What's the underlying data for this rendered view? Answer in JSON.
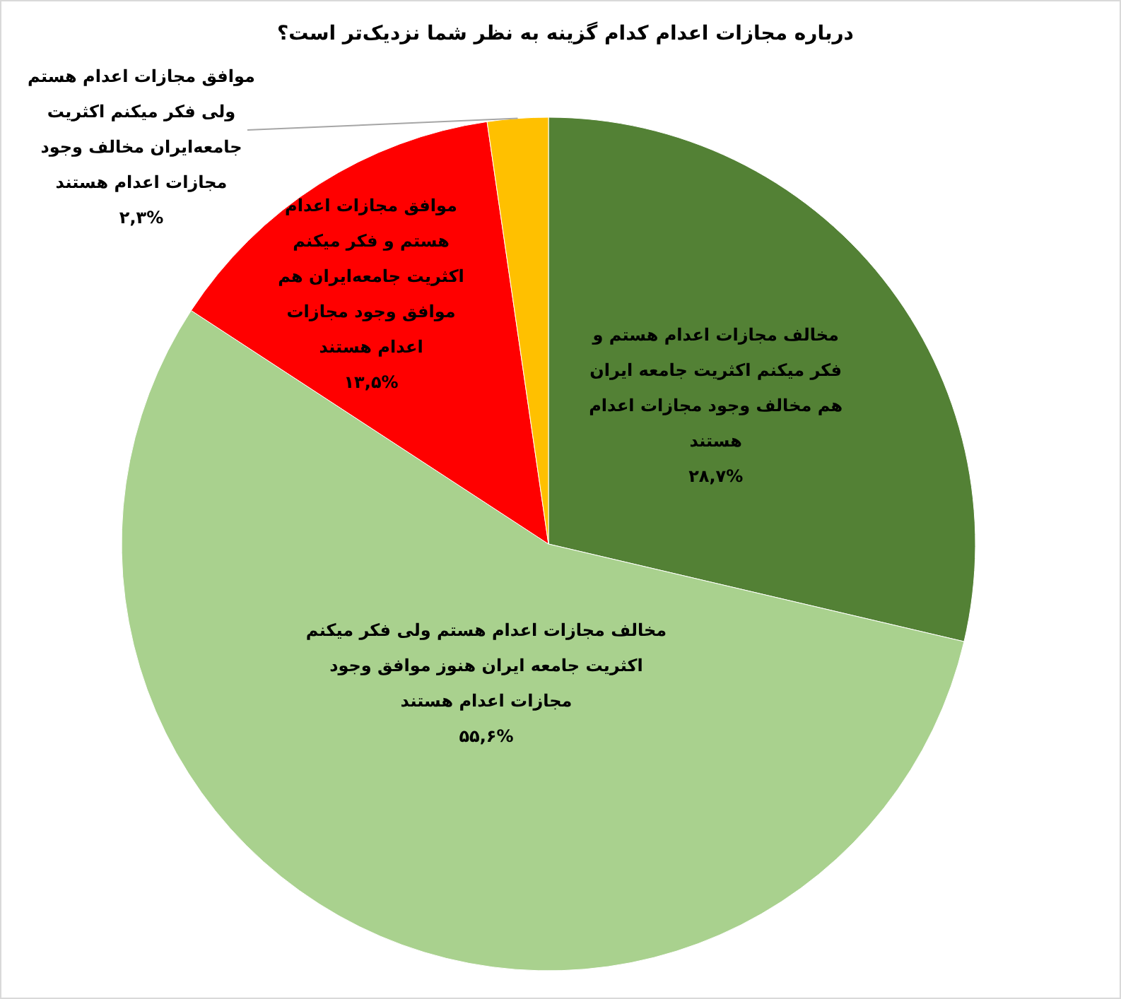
{
  "chart_data": {
    "type": "pie",
    "title": "درباره مجازات اعدام کدام گزینه به نظر شما نزدیک‌تر است؟",
    "categories": [
      "مخالف مجازات اعدام هستم و فکر میکنم اکثریت جامعه ایران هم مخالف وجود مجازات اعدام هستند",
      "مخالف مجازات اعدام هستم ولی فکر میکنم اکثریت جامعه ایران هنوز موافق وجود مجازات اعدام هستند",
      "موافق مجازات اعدام هستم و فکر میکنم اکثریت جامعه‌ایران هم موافق وجود مجازات اعدام هستند",
      "موافق مجازات اعدام هستم ولی فکر میکنم اکثریت جامعه‌ایران مخالف وجود مجازات اعدام هستند"
    ],
    "values": [
      28.7,
      55.6,
      13.5,
      2.3
    ],
    "value_labels": [
      "۲۸,۷%",
      "۵۵,۶%",
      "۱۳,۵%",
      "۲,۳%"
    ],
    "colors": [
      "#538135",
      "#a9d18e",
      "#ff0000",
      "#ffc000"
    ]
  }
}
